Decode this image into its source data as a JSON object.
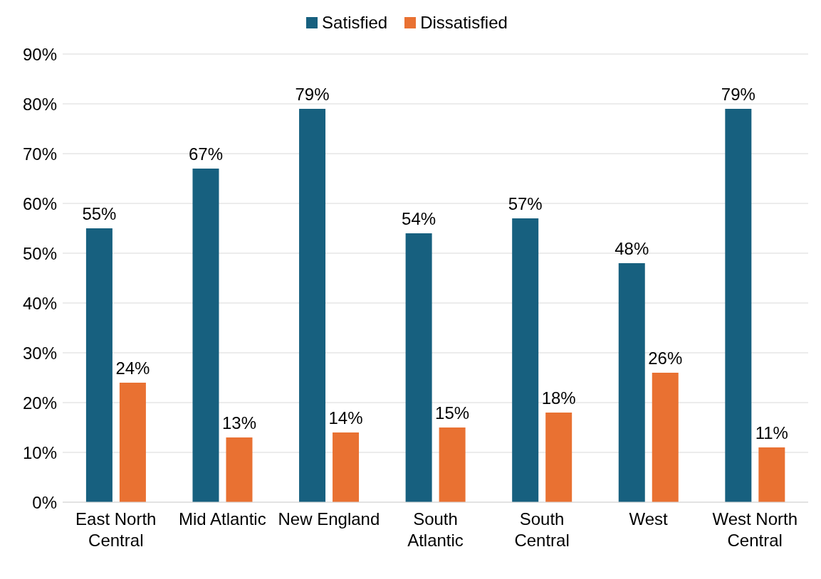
{
  "chart_data": {
    "type": "bar",
    "categories": [
      "East North Central",
      "Mid Atlantic",
      "New England",
      "South Atlantic",
      "South Central",
      "West",
      "West North Central"
    ],
    "series": [
      {
        "name": "Satisfied",
        "color": "#17607f",
        "values": [
          55,
          67,
          79,
          54,
          57,
          48,
          79
        ],
        "value_labels": [
          "55%",
          "67%",
          "79%",
          "54%",
          "57%",
          "48%",
          "79%"
        ]
      },
      {
        "name": "Dissatisfied",
        "color": "#e97132",
        "values": [
          24,
          13,
          14,
          15,
          18,
          26,
          11
        ],
        "value_labels": [
          "24%",
          "13%",
          "14%",
          "15%",
          "18%",
          "26%",
          "11%"
        ]
      }
    ],
    "ylim": [
      0,
      90
    ],
    "yticks": [
      {
        "value": 0,
        "label": "0%"
      },
      {
        "value": 10,
        "label": "10%"
      },
      {
        "value": 20,
        "label": "20%"
      },
      {
        "value": 30,
        "label": "30%"
      },
      {
        "value": 40,
        "label": "40%"
      },
      {
        "value": 50,
        "label": "50%"
      },
      {
        "value": 60,
        "label": "60%"
      },
      {
        "value": 70,
        "label": "70%"
      },
      {
        "value": 80,
        "label": "80%"
      },
      {
        "value": 90,
        "label": "90%"
      }
    ],
    "grid": "y",
    "legend": "top"
  }
}
